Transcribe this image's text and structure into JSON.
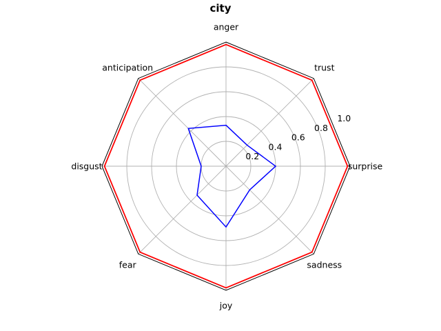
{
  "chart_data": {
    "type": "radar",
    "title": "city",
    "categories": [
      "anger",
      "trust",
      "surprise",
      "sadness",
      "joy",
      "fear",
      "disgust",
      "anticipation"
    ],
    "rlim": [
      0,
      1.0
    ],
    "rticks": [
      0.2,
      0.4,
      0.6,
      0.8,
      1.0
    ],
    "rtick_labels": [
      "0.2",
      "0.4",
      "0.6",
      "0.8",
      "1.0"
    ],
    "grid": true,
    "series": [
      {
        "color": "#ff0000",
        "values": [
          0.98,
          0.98,
          0.98,
          0.98,
          0.98,
          0.98,
          0.98,
          0.98
        ]
      },
      {
        "color": "#0000ff",
        "values": [
          0.33,
          0.24,
          0.4,
          0.27,
          0.49,
          0.33,
          0.2,
          0.43
        ]
      }
    ]
  }
}
